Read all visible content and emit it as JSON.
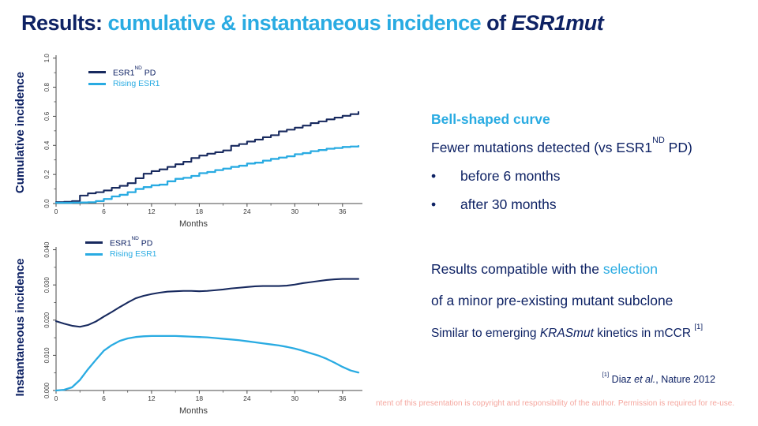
{
  "title": {
    "part1": "Results: ",
    "part2": "cumulative & instantaneous incidence",
    "part3": " of ",
    "part4": "ESR1mut"
  },
  "colors": {
    "navy_text": "#0e2264",
    "curve_navy": "#17295e",
    "cyan": "#29abe2",
    "footer_pink": "#f5a79f",
    "axis": "#4a4a4a"
  },
  "legend": {
    "series1_pre": "ESR1",
    "series1_sup": "ND",
    "series1_post": " PD",
    "series2": "Rising ESR1"
  },
  "right_panel": {
    "block1": {
      "heading": "Bell-shaped curve",
      "line_pre": "Fewer mutations detected (vs ESR1",
      "line_sup": "ND",
      "line_post": " PD)",
      "bullet_char": "•",
      "bullets": [
        "before 6 months",
        "after 30 months"
      ]
    },
    "block2": {
      "line1_pre": "Results compatible with the ",
      "line1_highlight": "selection",
      "line2": "of a minor pre-existing mutant subclone",
      "line3_pre": "Similar to emerging ",
      "line3_italic": "KRASmut",
      "line3_post": " kinetics in mCCR ",
      "line3_sup": "[1]"
    },
    "reference": {
      "sup": "[1]",
      "pre": " Diaz ",
      "italic": "et al.",
      "post": ", Nature 2012"
    }
  },
  "footer": {
    "text": "ntent of this presentation is copyright and responsibility of the author. Permission is required for re-use."
  },
  "chart_data": [
    {
      "type": "line",
      "title": "",
      "ylabel": "Cumulative incidence",
      "xlabel": "Months",
      "xlim": [
        0,
        38.5
      ],
      "ylim": [
        0,
        1.0
      ],
      "xticks": [
        0,
        6,
        12,
        18,
        24,
        30,
        36
      ],
      "xtick_labels": [
        "0",
        "6",
        "12",
        "18",
        "24",
        "30",
        "36"
      ],
      "x_minor": [
        3,
        9,
        15,
        21,
        27,
        33
      ],
      "yticks": [
        0,
        0.2,
        0.4,
        0.6,
        0.8,
        1.0
      ],
      "ytick_labels": [
        "0.0",
        "0.2",
        "0.4",
        "0.6",
        "0.8",
        "1.0"
      ],
      "y_minor": [
        0.1,
        0.3,
        0.5,
        0.7,
        0.9
      ],
      "grid": false,
      "legend_position": "top-left",
      "step": true,
      "x": [
        0,
        1,
        2,
        3,
        4,
        5,
        6,
        7,
        8,
        9,
        10,
        11,
        12,
        13,
        14,
        15,
        16,
        17,
        18,
        19,
        20,
        21,
        22,
        23,
        24,
        25,
        26,
        27,
        28,
        29,
        30,
        31,
        32,
        33,
        34,
        35,
        36,
        37,
        38
      ],
      "series": [
        {
          "name": "ESR1ND PD",
          "color": "#17295e",
          "values": [
            0.01,
            0.012,
            0.017,
            0.055,
            0.07,
            0.078,
            0.09,
            0.108,
            0.122,
            0.14,
            0.174,
            0.205,
            0.223,
            0.235,
            0.252,
            0.27,
            0.287,
            0.313,
            0.33,
            0.343,
            0.353,
            0.365,
            0.397,
            0.409,
            0.426,
            0.44,
            0.456,
            0.47,
            0.496,
            0.508,
            0.522,
            0.536,
            0.553,
            0.565,
            0.579,
            0.591,
            0.603,
            0.615,
            0.63
          ]
        },
        {
          "name": "Rising ESR1",
          "color": "#29abe2",
          "values": [
            0.005,
            0.005,
            0.006,
            0.007,
            0.009,
            0.017,
            0.031,
            0.049,
            0.06,
            0.078,
            0.1,
            0.113,
            0.125,
            0.13,
            0.153,
            0.17,
            0.177,
            0.19,
            0.209,
            0.217,
            0.23,
            0.24,
            0.252,
            0.26,
            0.275,
            0.281,
            0.295,
            0.307,
            0.316,
            0.325,
            0.339,
            0.347,
            0.36,
            0.368,
            0.377,
            0.382,
            0.389,
            0.392,
            0.396
          ]
        }
      ]
    },
    {
      "type": "line",
      "title": "",
      "ylabel": "Instantaneous incidence",
      "xlabel": "Months",
      "xlim": [
        0,
        38.5
      ],
      "ylim": [
        0,
        0.04
      ],
      "xticks": [
        0,
        6,
        12,
        18,
        24,
        30,
        36
      ],
      "xtick_labels": [
        "0",
        "6",
        "12",
        "18",
        "24",
        "30",
        "36"
      ],
      "x_minor": [
        3,
        9,
        15,
        21,
        27,
        33
      ],
      "yticks": [
        0,
        0.01,
        0.02,
        0.03,
        0.04
      ],
      "ytick_labels": [
        "0.000",
        "0.010",
        "0.020",
        "0.030",
        "0.040"
      ],
      "y_minor": [
        0.005,
        0.015,
        0.025,
        0.035
      ],
      "grid": false,
      "legend_position": "top-left",
      "step": false,
      "x": [
        0,
        1,
        2,
        3,
        4,
        5,
        6,
        7,
        8,
        9,
        10,
        11,
        12,
        13,
        14,
        15,
        16,
        17,
        18,
        19,
        20,
        21,
        22,
        23,
        24,
        25,
        26,
        27,
        28,
        29,
        30,
        31,
        32,
        33,
        34,
        35,
        36,
        37,
        38
      ],
      "series": [
        {
          "name": "ESR1ND PD",
          "color": "#17295e",
          "values": [
            0.0197,
            0.019,
            0.0184,
            0.0181,
            0.0186,
            0.0196,
            0.021,
            0.0223,
            0.0237,
            0.025,
            0.0262,
            0.0269,
            0.0274,
            0.0278,
            0.0281,
            0.0282,
            0.0283,
            0.0283,
            0.0282,
            0.0283,
            0.0285,
            0.0287,
            0.029,
            0.0292,
            0.0294,
            0.0296,
            0.0297,
            0.0297,
            0.0297,
            0.0298,
            0.0301,
            0.0305,
            0.0308,
            0.0311,
            0.0314,
            0.0316,
            0.0317,
            0.0317,
            0.0317
          ]
        },
        {
          "name": "Rising ESR1",
          "color": "#29abe2",
          "values": [
            0.0,
            0.0002,
            0.0009,
            0.003,
            0.006,
            0.0087,
            0.0113,
            0.0129,
            0.0141,
            0.0148,
            0.0152,
            0.0154,
            0.0155,
            0.0155,
            0.0155,
            0.0155,
            0.0154,
            0.0153,
            0.0152,
            0.0151,
            0.0149,
            0.0147,
            0.0145,
            0.0143,
            0.014,
            0.0137,
            0.0134,
            0.0131,
            0.0128,
            0.0124,
            0.0119,
            0.0113,
            0.0106,
            0.0099,
            0.009,
            0.0079,
            0.0067,
            0.0057,
            0.0051
          ]
        }
      ]
    }
  ]
}
